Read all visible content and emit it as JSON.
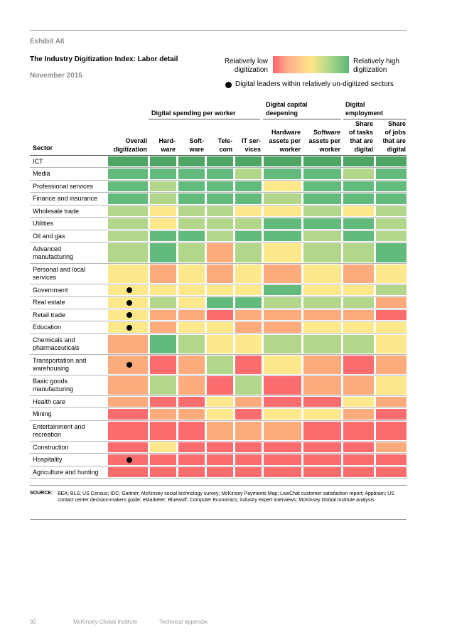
{
  "exhibit_label": "Exhibit A6",
  "title": "The Industry Digitization Index: Labor detail",
  "date": "November 2015",
  "legend": {
    "low_label": "Relatively low\ndigitization",
    "high_label": "Relatively high\ndigitization",
    "dot_label": "Digital leaders within relatively un-digitized sectors"
  },
  "group_headers": {
    "spending": "Digital spending per worker",
    "capital": "Digital capital\ndeepening",
    "employment": "Digital\nemployment"
  },
  "sector_header": "Sector",
  "columns": [
    "Overall\ndigitization",
    "Hard-\nware",
    "Soft-\nware",
    "Tele-\ncom",
    "IT ser-\nvices",
    "Hardware\nassets per\nworker",
    "Software\nassets per\nworker",
    "Share\nof tasks\nthat are\ndigital",
    "Share\nof jobs\nthat are\ndigital"
  ],
  "colors": {
    "dark_green": "#4ea565",
    "green": "#62bb7c",
    "light_green": "#b2d78a",
    "yellow": "#fde98b",
    "orange": "#fcab7d",
    "red": "#fa6c6e"
  },
  "rows": [
    {
      "sector": "ICT",
      "leader": false,
      "levels": [
        "dg",
        "dg",
        "dg",
        "dg",
        "dg",
        "dg",
        "dg",
        "dg",
        "dg"
      ]
    },
    {
      "sector": "Media",
      "leader": false,
      "levels": [
        "g",
        "g",
        "g",
        "g",
        "lg",
        "g",
        "g",
        "lg",
        "g"
      ]
    },
    {
      "sector": "Professional services",
      "leader": false,
      "levels": [
        "g",
        "lg",
        "g",
        "g",
        "g",
        "y",
        "g",
        "g",
        "g"
      ]
    },
    {
      "sector": "Finance and insurance",
      "leader": false,
      "levels": [
        "g",
        "lg",
        "g",
        "g",
        "g",
        "lg",
        "g",
        "g",
        "g"
      ]
    },
    {
      "sector": "Wholesale trade",
      "leader": false,
      "levels": [
        "lg",
        "y",
        "lg",
        "lg",
        "y",
        "y",
        "lg",
        "y",
        "lg"
      ]
    },
    {
      "sector": "Utilities",
      "leader": false,
      "levels": [
        "lg",
        "y",
        "lg",
        "lg",
        "lg",
        "g",
        "g",
        "g",
        "lg"
      ]
    },
    {
      "sector": "Oil and gas",
      "leader": false,
      "levels": [
        "lg",
        "g",
        "g",
        "lg",
        "g",
        "g",
        "lg",
        "g",
        "lg"
      ]
    },
    {
      "sector": "Advanced\nmanufacturing",
      "leader": false,
      "levels": [
        "lg",
        "g",
        "lg",
        "o",
        "lg",
        "y",
        "lg",
        "lg",
        "g"
      ]
    },
    {
      "sector": "Personal and local\nservices",
      "leader": false,
      "levels": [
        "y",
        "o",
        "y",
        "o",
        "y",
        "o",
        "y",
        "o",
        "y"
      ]
    },
    {
      "sector": "Government",
      "leader": true,
      "levels": [
        "y",
        "y",
        "y",
        "y",
        "y",
        "g",
        "y",
        "y",
        "lg"
      ]
    },
    {
      "sector": "Real estate",
      "leader": true,
      "levels": [
        "y",
        "lg",
        "y",
        "g",
        "g",
        "lg",
        "lg",
        "lg",
        "o"
      ]
    },
    {
      "sector": "Retail trade",
      "leader": true,
      "levels": [
        "y",
        "o",
        "o",
        "r",
        "o",
        "o",
        "o",
        "o",
        "r"
      ]
    },
    {
      "sector": "Education",
      "leader": true,
      "levels": [
        "y",
        "o",
        "y",
        "y",
        "o",
        "o",
        "y",
        "y",
        "y"
      ]
    },
    {
      "sector": "Chemicals and\npharmaceuticals",
      "leader": false,
      "levels": [
        "o",
        "g",
        "lg",
        "y",
        "y",
        "lg",
        "lg",
        "lg",
        "y"
      ]
    },
    {
      "sector": "Transportation and\nwarehousing",
      "leader": true,
      "levels": [
        "o",
        "r",
        "o",
        "lg",
        "r",
        "y",
        "o",
        "r",
        "o"
      ]
    },
    {
      "sector": "Basic goods\nmanufacturing",
      "leader": false,
      "levels": [
        "o",
        "lg",
        "o",
        "r",
        "lg",
        "r",
        "o",
        "o",
        "y"
      ]
    },
    {
      "sector": "Health care",
      "leader": false,
      "levels": [
        "o",
        "r",
        "r",
        "y",
        "o",
        "r",
        "r",
        "y",
        "o"
      ]
    },
    {
      "sector": "Mining",
      "leader": false,
      "levels": [
        "r",
        "o",
        "o",
        "y",
        "r",
        "y",
        "y",
        "o",
        "r"
      ]
    },
    {
      "sector": "Entertainment and\nrecreation",
      "leader": false,
      "levels": [
        "r",
        "r",
        "r",
        "o",
        "o",
        "o",
        "r",
        "r",
        "r"
      ]
    },
    {
      "sector": "Construction",
      "leader": false,
      "levels": [
        "r",
        "y",
        "r",
        "r",
        "r",
        "r",
        "r",
        "r",
        "o"
      ]
    },
    {
      "sector": "Hospitality",
      "leader": true,
      "levels": [
        "r",
        "r",
        "r",
        "r",
        "r",
        "r",
        "r",
        "r",
        "r"
      ]
    },
    {
      "sector": "Agriculture and hunting",
      "leader": false,
      "levels": [
        "r",
        "r",
        "r",
        "r",
        "r",
        "r",
        "r",
        "r",
        "r"
      ]
    }
  ],
  "source_label": "SOURCE:",
  "source_text": "BEA; BLS; US Census; IDC; Gartner; McKinsey social technology survey; McKinsey Payments Map; LiveChat customer satisfaction report; Appbrain; US contact center decision-makers guide; eMarketer; Bluewolf; Computer Economics; industry expert interviews; McKinsey Global Institute analysis",
  "footer": {
    "page_number": "92",
    "publisher": "McKinsey Global Institute",
    "section": "Technical appendix"
  }
}
